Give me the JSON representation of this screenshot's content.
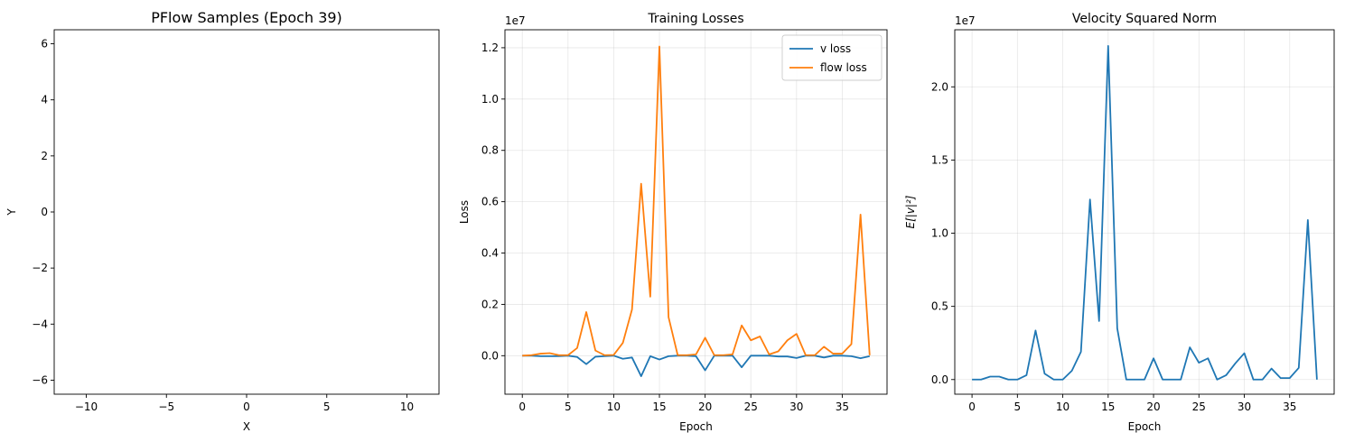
{
  "chart_data": [
    {
      "type": "scatter",
      "title": "PFlow Samples (Epoch 39)",
      "xlabel": "X",
      "ylabel": "Y",
      "xlim": [
        -12,
        12
      ],
      "ylim": [
        -6.5,
        6.5
      ],
      "xticks": [
        -10,
        -5,
        0,
        5,
        10
      ],
      "xtick_labels": [
        "−10",
        "−5",
        "0",
        "5",
        "10"
      ],
      "yticks": [
        -6,
        -4,
        -2,
        0,
        2,
        4,
        6
      ],
      "ytick_labels": [
        "−6",
        "−4",
        "−2",
        "0",
        "2",
        "4",
        "6"
      ],
      "grid": false,
      "points": []
    },
    {
      "type": "line",
      "title": "Training Losses",
      "xlabel": "Epoch",
      "ylabel": "Loss",
      "offset_label": "1e7",
      "xlim": [
        -1.9,
        39.9
      ],
      "ylim": [
        -1.5,
        12.7
      ],
      "xticks": [
        0,
        5,
        10,
        15,
        20,
        25,
        30,
        35
      ],
      "xtick_labels": [
        "0",
        "5",
        "10",
        "15",
        "20",
        "25",
        "30",
        "35"
      ],
      "yticks": [
        0,
        2,
        4,
        6,
        8,
        10,
        12
      ],
      "ytick_labels": [
        "0.0",
        "0.2",
        "0.4",
        "0.6",
        "0.8",
        "1.0",
        "1.2"
      ],
      "grid": true,
      "legend": "top-right",
      "x": [
        0,
        1,
        2,
        3,
        4,
        5,
        6,
        7,
        8,
        9,
        10,
        11,
        12,
        13,
        14,
        15,
        16,
        17,
        18,
        19,
        20,
        21,
        22,
        23,
        24,
        25,
        26,
        27,
        28,
        29,
        30,
        31,
        32,
        33,
        34,
        35,
        36,
        37,
        38
      ],
      "series": [
        {
          "name": "v loss",
          "color": "#1f77b4",
          "values": [
            0,
            0,
            -0.02,
            -0.02,
            -0.02,
            0,
            -0.05,
            -0.33,
            -0.04,
            -0.02,
            0,
            -0.12,
            -0.07,
            -0.8,
            -0.02,
            -0.15,
            -0.02,
            0,
            0,
            -0.02,
            -0.57,
            0,
            0,
            0,
            -0.45,
            0,
            0,
            0,
            -0.03,
            -0.03,
            -0.09,
            0,
            0,
            -0.07,
            0,
            0,
            -0.02,
            -0.1,
            -0.02
          ]
        },
        {
          "name": "flow loss",
          "color": "#ff7f0e",
          "values": [
            0,
            0.02,
            0.08,
            0.1,
            0.02,
            0.02,
            0.3,
            1.7,
            0.2,
            0.02,
            0.03,
            0.5,
            1.8,
            6.7,
            2.3,
            12.05,
            1.5,
            0.02,
            0.02,
            0.05,
            0.7,
            0.02,
            0.02,
            0.05,
            1.18,
            0.6,
            0.75,
            0.05,
            0.17,
            0.6,
            0.85,
            0.02,
            0.02,
            0.35,
            0.08,
            0.08,
            0.45,
            5.5,
            0.02
          ]
        }
      ]
    },
    {
      "type": "line",
      "title": "Velocity Squared Norm",
      "xlabel": "Epoch",
      "ylabel": "E[|v|²]",
      "offset_label": "1e7",
      "xlim": [
        -1.9,
        39.9
      ],
      "ylim": [
        -1.0,
        23.9
      ],
      "xticks": [
        0,
        5,
        10,
        15,
        20,
        25,
        30,
        35
      ],
      "xtick_labels": [
        "0",
        "5",
        "10",
        "15",
        "20",
        "25",
        "30",
        "35"
      ],
      "yticks": [
        0,
        5,
        10,
        15,
        20
      ],
      "ytick_labels": [
        "0.0",
        "0.5",
        "1.0",
        "1.5",
        "2.0"
      ],
      "grid": true,
      "x": [
        0,
        1,
        2,
        3,
        4,
        5,
        6,
        7,
        8,
        9,
        10,
        11,
        12,
        13,
        14,
        15,
        16,
        17,
        18,
        19,
        20,
        21,
        22,
        23,
        24,
        25,
        26,
        27,
        28,
        29,
        30,
        31,
        32,
        33,
        34,
        35,
        36,
        37,
        38
      ],
      "series": [
        {
          "color": "#1f77b4",
          "values": [
            0,
            0,
            0.2,
            0.2,
            0,
            0,
            0.3,
            3.35,
            0.4,
            0,
            0,
            0.6,
            1.9,
            12.3,
            4.0,
            22.8,
            3.5,
            0,
            0,
            0,
            1.45,
            0,
            0,
            0,
            2.2,
            1.15,
            1.45,
            0,
            0.3,
            1.1,
            1.8,
            0,
            0,
            0.75,
            0.1,
            0.1,
            0.8,
            10.9,
            0
          ]
        }
      ]
    }
  ]
}
